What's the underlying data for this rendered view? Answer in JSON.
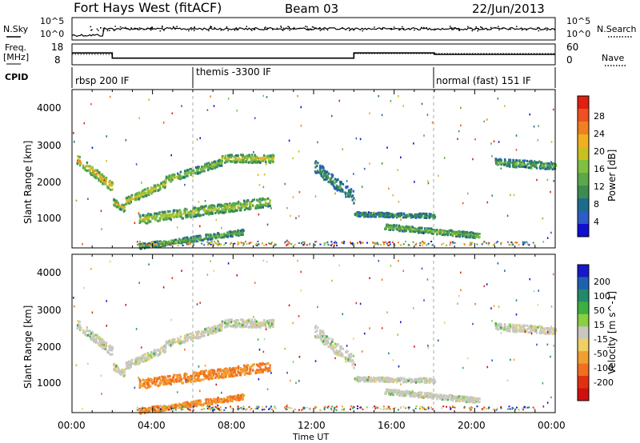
{
  "header": {
    "radar_title": "Fort Hays West (fitACF)",
    "beam": "Beam 03",
    "date": "22/Jun/2013"
  },
  "noise_panel": {
    "left_label": "N.Sky",
    "left_ticks": [
      "10^5",
      "10^0"
    ],
    "right_label": "N.Search",
    "right_ticks": [
      "10^5",
      "10^0"
    ]
  },
  "freq_panel": {
    "left_label_1": "Freq.",
    "left_label_2": "[MHz]",
    "left_ticks": [
      "18",
      "8"
    ],
    "right_label": "Nave",
    "right_ticks": [
      "60",
      "0"
    ]
  },
  "cpid": {
    "label": "CPID",
    "segments": [
      {
        "name": "rbsp 200 IF",
        "start_hour": 0
      },
      {
        "name": "themis -3300 IF",
        "start_hour": 6
      },
      {
        "name": "normal (fast) 151 IF",
        "start_hour": 18
      }
    ]
  },
  "power_panel": {
    "ylabel": "Slant Range [km]",
    "yticks": [
      "4000",
      "3000",
      "2000",
      "1000"
    ],
    "colorbar_label": "Power [dB]",
    "colorbar_ticks": [
      "28",
      "24",
      "20",
      "16",
      "12",
      "8",
      "4"
    ],
    "colors": [
      "#1010d0",
      "#2b5cc8",
      "#1e6c8c",
      "#3c8c50",
      "#5aa84a",
      "#80c040",
      "#c8c020",
      "#f0b020",
      "#f08020",
      "#f05020",
      "#e02010"
    ]
  },
  "velocity_panel": {
    "ylabel": "Slant Range [km]",
    "yticks": [
      "4000",
      "3000",
      "2000",
      "1000"
    ],
    "colorbar_label": "Velocity [m s^-1]",
    "colorbar_ticks": [
      "200",
      "100",
      "50",
      "15",
      "-15",
      "-50",
      "-100",
      "-200"
    ],
    "colors": [
      "#1818c8",
      "#2060b0",
      "#228a6a",
      "#3cb040",
      "#88d040",
      "#c8c8c0",
      "#f0d060",
      "#f0a030",
      "#f07020",
      "#e03010",
      "#d01010"
    ]
  },
  "x_axis": {
    "ticks": [
      "00:00",
      "04:00",
      "08:00",
      "12:00",
      "16:00",
      "20:00",
      "00:00"
    ],
    "label": "Time UT"
  },
  "chart_data": {
    "type": "heatmap",
    "title": "Fort Hays West (fitACF)",
    "xlabel": "Time UT",
    "ylabel": "Slant Range [km]",
    "xlim": [
      0,
      24
    ],
    "ylim": [
      180,
      4600
    ],
    "frequency_mhz": [
      {
        "start": 0,
        "end": 2,
        "value": 14
      },
      {
        "start": 2,
        "end": 14,
        "value": 10.5
      },
      {
        "start": 14,
        "end": 18,
        "value": 14
      },
      {
        "start": 18,
        "end": 24,
        "value": 13
      }
    ],
    "scatter_bands": [
      {
        "t0": 0.2,
        "t1": 2.0,
        "r0": 2700,
        "r1": 1900,
        "w": 260,
        "p": 20
      },
      {
        "t0": 2.0,
        "t1": 2.6,
        "r0": 1500,
        "r1": 1300,
        "w": 180,
        "p": 18
      },
      {
        "t0": 2.6,
        "t1": 4.6,
        "r0": 1500,
        "r1": 2000,
        "w": 200,
        "p": 17
      },
      {
        "t0": 4.6,
        "t1": 7.4,
        "r0": 2100,
        "r1": 2600,
        "w": 200,
        "p": 14
      },
      {
        "t0": 7.4,
        "t1": 10.0,
        "r0": 2700,
        "r1": 2700,
        "w": 220,
        "p": 16
      },
      {
        "t0": 3.3,
        "t1": 9.8,
        "r0": 1000,
        "r1": 1500,
        "w": 260,
        "p": 15
      },
      {
        "t0": 3.3,
        "t1": 8.5,
        "r0": 250,
        "r1": 650,
        "w": 150,
        "p": 12
      },
      {
        "t0": 12.0,
        "t1": 14.0,
        "r0": 2500,
        "r1": 1600,
        "w": 350,
        "p": 8
      },
      {
        "t0": 14.0,
        "t1": 18.0,
        "r0": 1150,
        "r1": 1100,
        "w": 120,
        "p": 9
      },
      {
        "t0": 15.5,
        "t1": 20.2,
        "r0": 800,
        "r1": 550,
        "w": 150,
        "p": 13
      },
      {
        "t0": 21.0,
        "t1": 24.0,
        "r0": 2600,
        "r1": 2500,
        "w": 200,
        "p": 11
      }
    ]
  }
}
